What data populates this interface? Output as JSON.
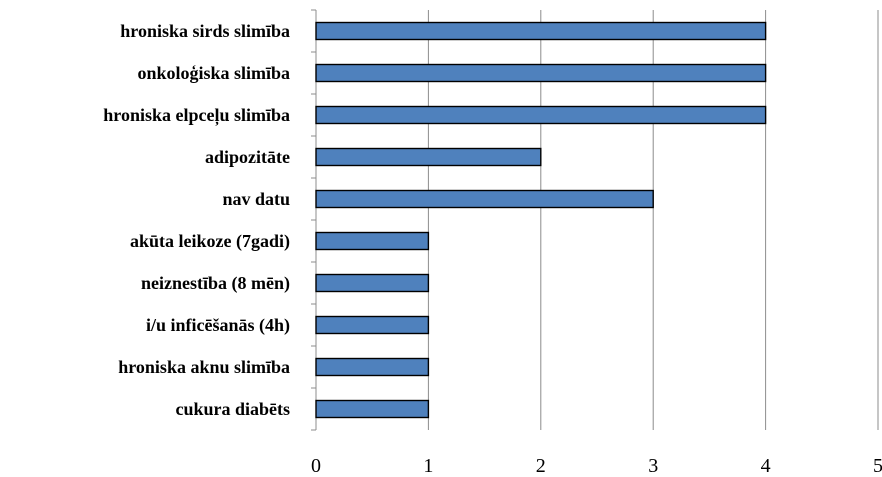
{
  "chart_data": {
    "type": "bar",
    "orientation": "horizontal",
    "categories": [
      "hroniska sirds slimība",
      "onkoloģiska slimība",
      "hroniska elpceļu slimība",
      "adipozitāte",
      "nav datu",
      "akūta leikoze (7gadi)",
      "neiznestība (8 mēn)",
      "i/u inficēšanās (4h)",
      "hroniska aknu slimība",
      "cukura diabēts"
    ],
    "values": [
      4,
      4,
      4,
      2,
      3,
      1,
      1,
      1,
      1,
      1
    ],
    "xlim": [
      0,
      5
    ],
    "xticks": [
      "0",
      "1",
      "2",
      "3",
      "4",
      "5"
    ],
    "title": "",
    "xlabel": "",
    "ylabel": "",
    "grid": "vertical",
    "legend": "none",
    "colors": {
      "bar": "#4f81bd",
      "bar_border": "#000000",
      "grid": "#8c8c8c"
    }
  }
}
